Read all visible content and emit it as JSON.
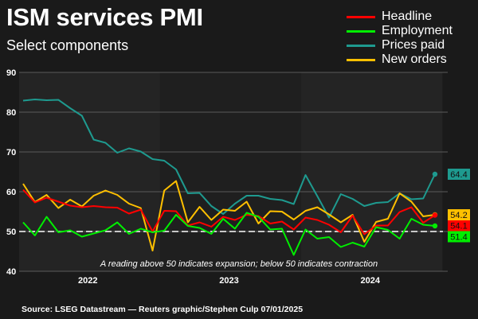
{
  "title": "ISM services PMI",
  "subtitle": "Select components",
  "source": "Source: LSEG Datastream — Reuters graphic/Stephen Culp 07/01/2025",
  "chart_data": {
    "type": "line",
    "title": "ISM services PMI",
    "subtitle": "Select components",
    "xlabel": "",
    "ylabel": "",
    "ylim": [
      40,
      90
    ],
    "yticks": [
      "40",
      "50",
      "60",
      "70",
      "80",
      "90"
    ],
    "xticks": [
      "2022",
      "2023",
      "2024"
    ],
    "x_range": "Jan 2022 - Dec 2024 (monthly)",
    "grid": true,
    "legend_position": "top-right",
    "reference_line": 50,
    "annotation": "A reading above 50 indicates expansion; below 50 indicates contraction",
    "series": [
      {
        "name": "Headline",
        "color": "#ff0000",
        "end_label": "54.1",
        "values": [
          60.5,
          57.3,
          58.5,
          57.5,
          56.5,
          56.1,
          56.4,
          56.1,
          56.0,
          54.5,
          55.5,
          50.0,
          55.2,
          55.1,
          51.5,
          52.3,
          51.2,
          53.7,
          52.9,
          54.2,
          53.9,
          52.0,
          52.5,
          50.5,
          53.5,
          52.9,
          51.7,
          49.8,
          54.0,
          49.3,
          51.5,
          51.5,
          54.9,
          56.1,
          52.2,
          54.1
        ]
      },
      {
        "name": "Employment",
        "color": "#00ee00",
        "end_label": "51.4",
        "values": [
          52.3,
          49.0,
          53.7,
          49.8,
          50.3,
          48.7,
          49.5,
          50.3,
          52.3,
          49.4,
          50.7,
          49.8,
          50.2,
          54.2,
          51.4,
          50.9,
          49.4,
          53.2,
          50.7,
          54.7,
          53.7,
          50.5,
          50.7,
          44.1,
          50.5,
          48.2,
          48.6,
          46.1,
          47.2,
          46.2,
          51.1,
          50.4,
          48.2,
          53.2,
          51.7,
          51.4
        ]
      },
      {
        "name": "Prices paid",
        "color": "#1e9a8f",
        "end_label": "64.4",
        "values": [
          82.9,
          83.2,
          83.0,
          83.1,
          81.0,
          79.1,
          73.1,
          72.3,
          69.8,
          70.9,
          70.1,
          68.2,
          67.8,
          65.6,
          59.6,
          59.7,
          56.4,
          54.4,
          57.0,
          59.0,
          59.0,
          58.2,
          57.9,
          56.9,
          64.2,
          58.9,
          53.5,
          59.4,
          58.2,
          56.4,
          57.2,
          57.4,
          59.6,
          58.1,
          58.3,
          64.4
        ]
      },
      {
        "name": "New orders",
        "color": "#ffc000",
        "end_label": "54.2",
        "values": [
          62.0,
          57.4,
          59.2,
          55.9,
          58.0,
          56.3,
          59.0,
          60.3,
          59.2,
          57.0,
          55.9,
          45.2,
          60.3,
          62.7,
          52.3,
          56.2,
          52.9,
          55.5,
          55.2,
          57.5,
          52.0,
          55.1,
          55.0,
          53.0,
          55.2,
          56.1,
          54.3,
          52.3,
          54.2,
          47.4,
          52.4,
          53.2,
          59.6,
          57.5,
          53.8,
          54.2
        ]
      }
    ]
  }
}
